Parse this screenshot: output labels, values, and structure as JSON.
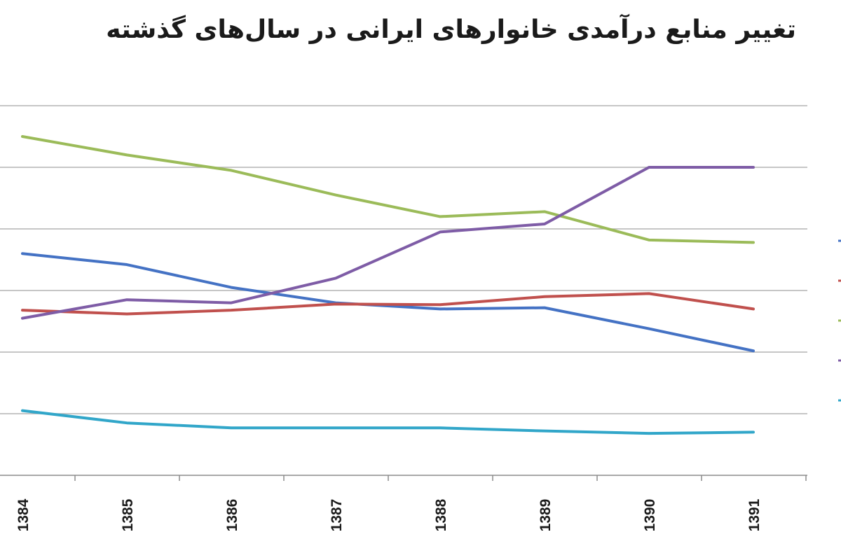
{
  "chart_data": {
    "type": "line",
    "title": "تغییر منابع درآمدی خانوارهای ایرانی در سال‌های گذشته",
    "categories": [
      "1384",
      "1385",
      "1386",
      "1387",
      "1388",
      "1389",
      "1390",
      "1391"
    ],
    "ylim": [
      0,
      6
    ],
    "grid": true,
    "legend": "right",
    "series": [
      {
        "color": "#4472C4",
        "values": [
          3.6,
          3.42,
          3.05,
          2.8,
          2.7,
          2.72,
          2.38,
          2.02
        ]
      },
      {
        "color": "#C0504D",
        "values": [
          2.68,
          2.62,
          2.68,
          2.78,
          2.77,
          2.9,
          2.95,
          2.7
        ]
      },
      {
        "color": "#9BBB59",
        "values": [
          5.5,
          5.2,
          4.95,
          4.55,
          4.2,
          4.28,
          3.82,
          3.78
        ]
      },
      {
        "color": "#7E5CA6",
        "values": [
          2.55,
          2.85,
          2.8,
          3.2,
          3.95,
          4.08,
          5.0,
          5.0
        ]
      },
      {
        "color": "#31A6C9",
        "values": [
          1.05,
          0.85,
          0.77,
          0.77,
          0.77,
          0.72,
          0.68,
          0.7
        ]
      }
    ]
  }
}
